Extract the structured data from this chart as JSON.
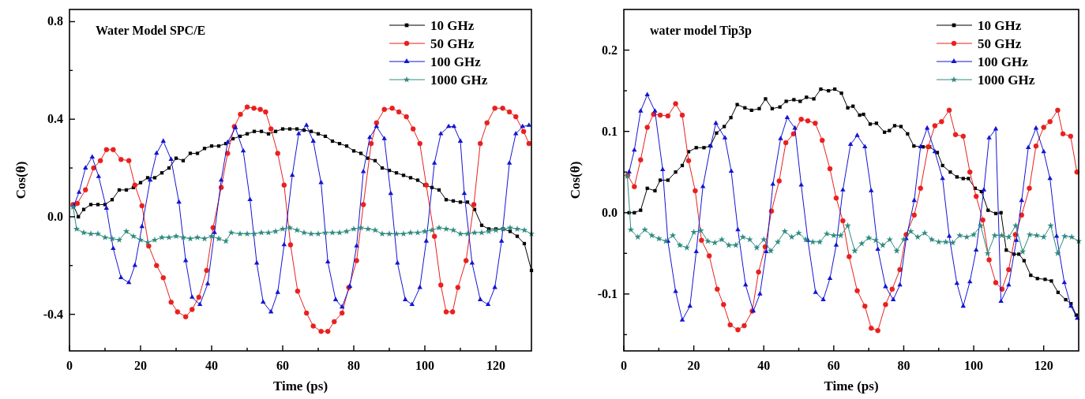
{
  "chart_data": [
    {
      "type": "line",
      "title": "Water Model SPC/E",
      "xlabel": "Time (ps)",
      "ylabel": "Cos(θ)",
      "xlim": [
        0,
        130
      ],
      "ylim": [
        -0.55,
        0.85
      ],
      "xticks": [
        0,
        {
          "value": 10,
          "label": null
        },
        20,
        {
          "value": 30,
          "label": null
        },
        40,
        {
          "value": 50,
          "label": null
        },
        60,
        {
          "value": 70,
          "label": null
        },
        80,
        {
          "value": 90,
          "label": null
        },
        100,
        {
          "value": 110,
          "label": null
        },
        120
      ],
      "yticks": [
        {
          "value": -0.4,
          "label": "-0.4"
        },
        {
          "value": -0.2,
          "label": null
        },
        {
          "value": 0,
          "label": "0.0"
        },
        {
          "value": 0.2,
          "label": null
        },
        0.4,
        {
          "value": 0.6,
          "label": null
        },
        0.8
      ],
      "legend": "top right",
      "line_style": "solid",
      "series": [
        {
          "name": "10 GHz",
          "color": "#000000",
          "marker": "square",
          "x": [
            1,
            2.5,
            4,
            6,
            8,
            10,
            12,
            14,
            16,
            18,
            20,
            22,
            24,
            26,
            28,
            30,
            32,
            34,
            36,
            38,
            40,
            42,
            44,
            46,
            48,
            50,
            52,
            54,
            56,
            58,
            60,
            62,
            64,
            66,
            68,
            70,
            72,
            74,
            76,
            78,
            80,
            82,
            84,
            86,
            88,
            90,
            92,
            94,
            96,
            98,
            100,
            102,
            104,
            106,
            108,
            110,
            112,
            114,
            116,
            118,
            120,
            122,
            124,
            126,
            128,
            130
          ],
          "values": [
            0.05,
            0,
            0.03,
            0.05,
            0.05,
            0.05,
            0.07,
            0.11,
            0.11,
            0.12,
            0.14,
            0.16,
            0.16,
            0.18,
            0.2,
            0.24,
            0.23,
            0.26,
            0.26,
            0.28,
            0.29,
            0.29,
            0.3,
            0.32,
            0.33,
            0.34,
            0.35,
            0.35,
            0.34,
            0.35,
            0.36,
            0.36,
            0.36,
            0.355,
            0.35,
            0.34,
            0.33,
            0.31,
            0.3,
            0.29,
            0.27,
            0.26,
            0.24,
            0.23,
            0.2,
            0.19,
            0.18,
            0.17,
            0.16,
            0.15,
            0.13,
            0.12,
            0.11,
            0.07,
            0.065,
            0.06,
            0.06,
            0.03,
            -0.035,
            -0.05,
            -0.05,
            -0.05,
            -0.06,
            -0.08,
            -0.11,
            -0.22
          ]
        },
        {
          "name": "50 GHz",
          "color": "#e8201e",
          "marker": "circle",
          "x": [
            1,
            2.2,
            4.5,
            6.8,
            8.7,
            10.4,
            12.3,
            14.5,
            16.7,
            18.4,
            20.4,
            22.3,
            24.5,
            26.4,
            28.6,
            30.4,
            32.7,
            34.5,
            36.4,
            38.6,
            40.4,
            42.7,
            44.5,
            46.4,
            48.1,
            50,
            51.9,
            53.7,
            55.2,
            56.7,
            58.6,
            60.4,
            62.2,
            64.2,
            66.7,
            68.6,
            70.8,
            72.7,
            74.5,
            76.7,
            78.6,
            80.8,
            82.7,
            84.9,
            86.4,
            88.6,
            90.8,
            92.7,
            94.8,
            96.7,
            98.6,
            100.4,
            102.7,
            104.5,
            106,
            107.8,
            109.3,
            111.6,
            113.8,
            115.6,
            117.5,
            119.7,
            121.9,
            123.8,
            125.6,
            127.8,
            129.3
          ],
          "values": [
            0.05,
            0.055,
            0.11,
            0.2,
            0.23,
            0.275,
            0.275,
            0.235,
            0.23,
            0.13,
            0.045,
            -0.12,
            -0.2,
            -0.25,
            -0.35,
            -0.39,
            -0.41,
            -0.38,
            -0.33,
            -0.22,
            -0.045,
            0.12,
            0.26,
            0.37,
            0.42,
            0.45,
            0.445,
            0.44,
            0.43,
            0.36,
            0.26,
            0.13,
            -0.115,
            -0.305,
            -0.395,
            -0.448,
            -0.47,
            -0.47,
            -0.43,
            -0.395,
            -0.29,
            -0.18,
            0.05,
            0.3,
            0.385,
            0.44,
            0.445,
            0.43,
            0.41,
            0.36,
            0.3,
            0.13,
            -0.08,
            -0.28,
            -0.39,
            -0.39,
            -0.29,
            -0.18,
            0.05,
            0.3,
            0.385,
            0.445,
            0.445,
            0.43,
            0.41,
            0.35,
            0.3
          ]
        },
        {
          "name": "100 GHz",
          "color": "#1414d2",
          "marker": "triangle",
          "x": [
            1.2,
            2.7,
            4.5,
            6.4,
            8.2,
            10.4,
            12.3,
            14.5,
            16.7,
            18.4,
            20.4,
            22.7,
            24.5,
            26.4,
            28.6,
            30.8,
            32.7,
            34.5,
            36.7,
            38.9,
            40.8,
            42.7,
            44.5,
            46.7,
            48.9,
            50.8,
            52.7,
            54.5,
            56.7,
            58.6,
            60.4,
            62.7,
            64.5,
            66.7,
            68.6,
            70.8,
            72.7,
            74.9,
            76.7,
            78.9,
            80.8,
            82.7,
            84.5,
            86.4,
            88.6,
            90.4,
            92.3,
            94.5,
            96.4,
            98.6,
            100.4,
            102.7,
            104.5,
            106.7,
            108.2,
            110,
            111.1,
            113.3,
            115.6,
            117.8,
            119.7,
            121.6,
            123.8,
            125.6,
            127.5,
            129.3
          ],
          "values": [
            0.046,
            0.1,
            0.2,
            0.245,
            0.165,
            0.035,
            -0.13,
            -0.25,
            -0.27,
            -0.2,
            -0.04,
            0.15,
            0.26,
            0.31,
            0.235,
            0.06,
            -0.18,
            -0.33,
            -0.36,
            -0.275,
            -0.065,
            0.15,
            0.305,
            0.365,
            0.27,
            0.07,
            -0.19,
            -0.35,
            -0.39,
            -0.31,
            -0.115,
            0.17,
            0.34,
            0.375,
            0.31,
            0.14,
            -0.185,
            -0.34,
            -0.37,
            -0.285,
            -0.12,
            0.185,
            0.325,
            0.37,
            0.32,
            0.095,
            -0.19,
            -0.34,
            -0.36,
            -0.29,
            -0.1,
            0.22,
            0.34,
            0.37,
            0.37,
            0.31,
            0.095,
            -0.19,
            -0.34,
            -0.36,
            -0.29,
            -0.1,
            0.22,
            0.34,
            0.37,
            0.375
          ]
        },
        {
          "name": "1000 GHz",
          "color": "#2e8b80",
          "marker": "star",
          "x": [
            1,
            2,
            4,
            6,
            8,
            10,
            12,
            14,
            16,
            18,
            20,
            22,
            24,
            26,
            28,
            30,
            32,
            34,
            36,
            38,
            40,
            42,
            44,
            45.5,
            48,
            50,
            52,
            54,
            56,
            58,
            60,
            62,
            64,
            66,
            68,
            70,
            72,
            74,
            76,
            78,
            80,
            82,
            84,
            86,
            88,
            90,
            92,
            94,
            96,
            98,
            100,
            102,
            104,
            106,
            108,
            110,
            112,
            114,
            116,
            118,
            120,
            122,
            124,
            126,
            128,
            130
          ],
          "values": [
            0.04,
            -0.05,
            -0.065,
            -0.07,
            -0.07,
            -0.085,
            -0.09,
            -0.095,
            -0.06,
            -0.08,
            -0.095,
            -0.105,
            -0.095,
            -0.085,
            -0.085,
            -0.08,
            -0.085,
            -0.09,
            -0.085,
            -0.09,
            -0.08,
            -0.09,
            -0.1,
            -0.065,
            -0.07,
            -0.07,
            -0.07,
            -0.065,
            -0.065,
            -0.06,
            -0.05,
            -0.045,
            -0.055,
            -0.065,
            -0.07,
            -0.07,
            -0.065,
            -0.065,
            -0.065,
            -0.06,
            -0.05,
            -0.045,
            -0.05,
            -0.055,
            -0.07,
            -0.07,
            -0.07,
            -0.07,
            -0.065,
            -0.065,
            -0.06,
            -0.055,
            -0.045,
            -0.05,
            -0.055,
            -0.07,
            -0.07,
            -0.065,
            -0.065,
            -0.06,
            -0.055,
            -0.05,
            -0.045,
            -0.05,
            -0.055,
            -0.07
          ]
        }
      ]
    },
    {
      "type": "line",
      "title": "water model Tip3p",
      "xlabel": "Time (ps)",
      "ylabel": "Cos(θ)",
      "xlim": [
        0,
        130
      ],
      "ylim": [
        -0.17,
        0.25
      ],
      "xticks": [
        0,
        {
          "value": 10,
          "label": null
        },
        20,
        {
          "value": 30,
          "label": null
        },
        40,
        {
          "value": 50,
          "label": null
        },
        60,
        {
          "value": 70,
          "label": null
        },
        80,
        {
          "value": 90,
          "label": null
        },
        100,
        {
          "value": 110,
          "label": null
        },
        120
      ],
      "yticks": [
        {
          "value": -0.15,
          "label": null
        },
        {
          "value": -0.1,
          "label": "-0.1"
        },
        {
          "value": -0.05,
          "label": null
        },
        {
          "value": 0,
          "label": "0.0"
        },
        {
          "value": 0.05,
          "label": null
        },
        0.1,
        {
          "value": 0.15,
          "label": null
        },
        0.2
      ],
      "legend": "top right",
      "line_style": "solid",
      "series": [
        {
          "name": "10 GHz",
          "color": "#000000",
          "marker": "square",
          "x": [
            1.5,
            3,
            4.8,
            6.7,
            8.9,
            10.4,
            12.6,
            14.8,
            16.7,
            18.5,
            20.7,
            22.9,
            24.7,
            26.5,
            28.7,
            30.6,
            32.4,
            34.6,
            36.5,
            38.7,
            40.5,
            42.4,
            44.6,
            46.4,
            48.6,
            50.4,
            52.2,
            54.3,
            56.3,
            58.5,
            60.3,
            62.2,
            64,
            65.5,
            67.4,
            68.5,
            70.4,
            72.2,
            74.5,
            75.9,
            77.4,
            79.2,
            81.1,
            82.9,
            85.5,
            87.4,
            89.6,
            91.1,
            93.3,
            95.2,
            97,
            98.5,
            100.4,
            102.2,
            104.1,
            106.3,
            107.8,
            109.3,
            111.5,
            112.9,
            114.4,
            116.3,
            118.2,
            120.4,
            122.2,
            124.1,
            126.3,
            127.8,
            129.3
          ],
          "values": [
            0,
            0,
            0.003,
            0.03,
            0.027,
            0.04,
            0.04,
            0.05,
            0.058,
            0.075,
            0.08,
            0.08,
            0.082,
            0.098,
            0.106,
            0.117,
            0.133,
            0.129,
            0.126,
            0.128,
            0.14,
            0.128,
            0.13,
            0.137,
            0.139,
            0.137,
            0.142,
            0.14,
            0.152,
            0.15,
            0.152,
            0.147,
            0.129,
            0.131,
            0.12,
            0.121,
            0.109,
            0.11,
            0.099,
            0.101,
            0.107,
            0.106,
            0.097,
            0.082,
            0.081,
            0.081,
            0.074,
            0.058,
            0.05,
            0.044,
            0.042,
            0.042,
            0.03,
            0.026,
            0.003,
            -0.001,
            0,
            -0.046,
            -0.051,
            -0.051,
            -0.059,
            -0.077,
            -0.081,
            -0.082,
            -0.084,
            -0.098,
            -0.107,
            -0.112,
            -0.126
          ]
        },
        {
          "name": "50 GHz",
          "color": "#e8201e",
          "marker": "circle",
          "x": [
            1.1,
            3,
            4.8,
            6.7,
            8.5,
            10.4,
            12.6,
            14.8,
            16.7,
            18.5,
            20.4,
            22.2,
            24.4,
            26.7,
            28.5,
            30.4,
            32.6,
            34.4,
            36.7,
            38.5,
            40.4,
            42.2,
            44.4,
            46.3,
            48.5,
            50.7,
            52.6,
            54.7,
            56.7,
            58.9,
            60.7,
            62.6,
            64.4,
            66.7,
            68.9,
            70.7,
            72.6,
            74.8,
            76.7,
            78.9,
            80.7,
            83,
            84.8,
            87,
            88.9,
            90.8,
            93,
            94.8,
            97,
            98.9,
            100.7,
            102.6,
            104.4,
            106.3,
            108.1,
            110,
            111.9,
            113.7,
            115.9,
            117.8,
            120,
            121.8,
            124,
            125.5,
            127.7,
            129.5
          ],
          "values": [
            0.046,
            0.032,
            0.065,
            0.105,
            0.121,
            0.12,
            0.119,
            0.134,
            0.12,
            0.064,
            0.027,
            -0.034,
            -0.053,
            -0.094,
            -0.113,
            -0.138,
            -0.144,
            -0.139,
            -0.121,
            -0.073,
            -0.042,
            0.002,
            0.039,
            0.086,
            0.097,
            0.115,
            0.113,
            0.11,
            0.089,
            0.054,
            0.018,
            -0.01,
            -0.054,
            -0.096,
            -0.115,
            -0.142,
            -0.145,
            -0.113,
            -0.094,
            -0.07,
            -0.027,
            -0.003,
            0.03,
            0.081,
            0.107,
            0.112,
            0.126,
            0.096,
            0.094,
            0.05,
            0.02,
            -0.009,
            -0.058,
            -0.086,
            -0.094,
            -0.07,
            -0.027,
            -0.003,
            0.03,
            0.082,
            0.105,
            0.112,
            0.126,
            0.097,
            0.094,
            0.05
          ]
        },
        {
          "name": "100 GHz",
          "color": "#1414d2",
          "marker": "triangle",
          "x": [
            1.5,
            3,
            4.8,
            6.7,
            8.9,
            11.1,
            12.6,
            14.8,
            16.7,
            18.9,
            20.7,
            22.6,
            24.8,
            26.3,
            28.9,
            30.7,
            32.6,
            34.8,
            37,
            38.9,
            40.7,
            42.6,
            44.8,
            46.7,
            48.9,
            50.7,
            52.6,
            54.8,
            57,
            58.9,
            60.7,
            62.6,
            64.8,
            66.7,
            68.9,
            70.7,
            72.6,
            74.8,
            77,
            78.9,
            80.7,
            83,
            84.8,
            86.7,
            88.9,
            91.1,
            93,
            95.2,
            97,
            98.9,
            100.7,
            102.9,
            104.4,
            106.3,
            107.8,
            110,
            112.2,
            113.7,
            115.6,
            117.8,
            120,
            121.8,
            123.7,
            125.9,
            127.8,
            129.6
          ],
          "values": [
            0.05,
            0.077,
            0.125,
            0.145,
            0.125,
            0.053,
            -0.035,
            -0.097,
            -0.132,
            -0.115,
            -0.048,
            0.032,
            0.082,
            0.11,
            0.092,
            0.051,
            -0.021,
            -0.089,
            -0.121,
            -0.1,
            -0.048,
            0.035,
            0.091,
            0.117,
            0.104,
            0.034,
            -0.034,
            -0.098,
            -0.107,
            -0.081,
            -0.04,
            0.028,
            0.084,
            0.095,
            0.081,
            0.027,
            -0.045,
            -0.091,
            -0.107,
            -0.089,
            -0.032,
            0.015,
            0.081,
            0.104,
            0.075,
            0.042,
            -0.029,
            -0.087,
            -0.115,
            -0.085,
            -0.046,
            0.028,
            0.092,
            0.103,
            -0.109,
            -0.089,
            -0.034,
            0.015,
            0.08,
            0.104,
            0.075,
            0.042,
            -0.029,
            -0.086,
            -0.115,
            -0.13
          ]
        },
        {
          "name": "1000 GHz",
          "color": "#2e8b80",
          "marker": "star",
          "x": [
            1,
            2,
            4,
            6,
            8,
            10,
            12,
            14,
            16,
            18,
            20,
            22,
            24,
            26,
            28,
            30,
            32,
            34,
            36,
            38,
            40,
            42,
            44,
            46,
            48,
            50,
            52,
            54,
            56,
            58,
            60,
            62,
            64,
            66,
            68,
            70,
            72,
            74,
            76,
            78,
            80,
            82,
            84,
            86,
            88,
            90,
            92,
            94,
            96,
            98,
            100,
            102,
            104,
            106,
            108,
            110,
            112,
            114,
            116,
            118,
            120,
            122,
            124,
            126,
            128,
            130
          ],
          "values": [
            0.045,
            -0.021,
            -0.03,
            -0.021,
            -0.028,
            -0.032,
            -0.035,
            -0.028,
            -0.04,
            -0.043,
            -0.024,
            -0.022,
            -0.035,
            -0.037,
            -0.033,
            -0.04,
            -0.04,
            -0.03,
            -0.033,
            -0.043,
            -0.033,
            -0.047,
            -0.036,
            -0.023,
            -0.03,
            -0.025,
            -0.033,
            -0.036,
            -0.036,
            -0.026,
            -0.028,
            -0.028,
            -0.016,
            -0.047,
            -0.038,
            -0.031,
            -0.034,
            -0.04,
            -0.033,
            -0.047,
            -0.033,
            -0.023,
            -0.03,
            -0.025,
            -0.033,
            -0.036,
            -0.036,
            -0.037,
            -0.028,
            -0.03,
            -0.027,
            -0.016,
            -0.05,
            -0.028,
            -0.028,
            -0.03,
            -0.016,
            -0.048,
            -0.027,
            -0.028,
            -0.03,
            -0.016,
            -0.05,
            -0.029,
            -0.03,
            -0.035
          ]
        }
      ]
    }
  ]
}
